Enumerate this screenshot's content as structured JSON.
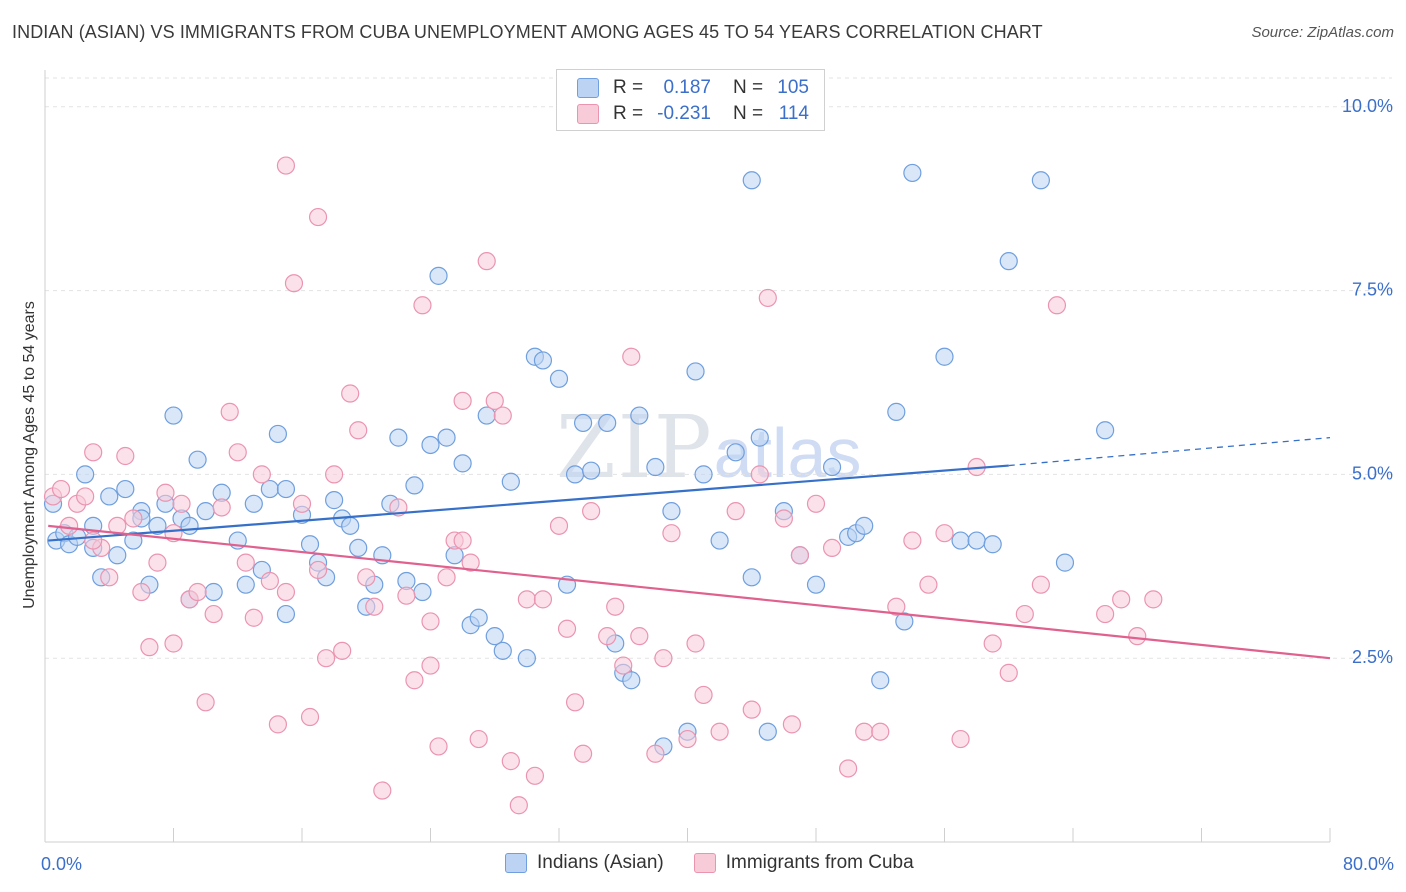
{
  "title": "INDIAN (ASIAN) VS IMMIGRANTS FROM CUBA UNEMPLOYMENT AMONG AGES 45 TO 54 YEARS CORRELATION CHART",
  "source": "Source: ZipAtlas.com",
  "watermark": {
    "zip": "ZIP",
    "atlas": "atlas"
  },
  "legend": {
    "r_label": "R =",
    "n_label": "N =",
    "rows": [
      {
        "r": "0.187",
        "n": "105",
        "color": "#9ec1ee"
      },
      {
        "r": "-0.231",
        "n": "114",
        "color": "#f4b3c8"
      }
    ]
  },
  "chart_data": {
    "type": "scatter",
    "ylabel": "Unemployment Among Ages 45 to 54 years",
    "xlim": [
      0,
      80
    ],
    "ylim": [
      0,
      10.5
    ],
    "x_tick_labels": [
      "0.0%",
      "80.0%"
    ],
    "y_ticks": [
      2.5,
      5.0,
      7.5,
      10.0
    ],
    "y_tick_labels": [
      "2.5%",
      "5.0%",
      "7.5%",
      "10.0%"
    ],
    "grid": true,
    "series": [
      {
        "name": "Indians (Asian)",
        "color": "#6f9fde",
        "fill": "#bcd3f3",
        "trend": {
          "x0": 0.2,
          "y0": 4.1,
          "x1": 60,
          "y1": 5.12,
          "x_dash_end": 80,
          "y_dash_end": 5.5,
          "color": "#3670c8"
        },
        "points": [
          [
            0.5,
            4.6
          ],
          [
            0.7,
            4.1
          ],
          [
            1.2,
            4.2
          ],
          [
            1.5,
            4.05
          ],
          [
            2,
            4.15
          ],
          [
            2.5,
            5.0
          ],
          [
            3,
            4.3
          ],
          [
            3.5,
            3.6
          ],
          [
            4,
            4.7
          ],
          [
            4.5,
            3.9
          ],
          [
            5,
            4.8
          ],
          [
            5.5,
            4.1
          ],
          [
            6,
            4.5
          ],
          [
            6.5,
            3.5
          ],
          [
            7,
            4.3
          ],
          [
            7.5,
            4.6
          ],
          [
            8,
            5.8
          ],
          [
            8.5,
            4.4
          ],
          [
            9,
            4.3
          ],
          [
            9.5,
            5.2
          ],
          [
            10,
            4.5
          ],
          [
            10.5,
            3.4
          ],
          [
            11,
            4.75
          ],
          [
            12,
            4.1
          ],
          [
            12.5,
            3.5
          ],
          [
            13,
            4.6
          ],
          [
            13.5,
            3.7
          ],
          [
            14,
            4.8
          ],
          [
            14.5,
            5.55
          ],
          [
            15,
            4.8
          ],
          [
            16,
            4.45
          ],
          [
            16.5,
            4.05
          ],
          [
            17,
            3.8
          ],
          [
            17.5,
            3.6
          ],
          [
            18,
            4.65
          ],
          [
            18.5,
            4.4
          ],
          [
            19,
            4.3
          ],
          [
            19.5,
            4.0
          ],
          [
            20,
            3.2
          ],
          [
            20.5,
            3.5
          ],
          [
            21,
            3.9
          ],
          [
            21.5,
            4.6
          ],
          [
            22,
            5.5
          ],
          [
            22.5,
            3.55
          ],
          [
            23,
            4.85
          ],
          [
            23.5,
            3.4
          ],
          [
            24,
            5.4
          ],
          [
            24.5,
            7.7
          ],
          [
            25,
            5.5
          ],
          [
            25.5,
            3.9
          ],
          [
            26,
            5.15
          ],
          [
            26.5,
            2.95
          ],
          [
            27,
            3.05
          ],
          [
            27.5,
            5.8
          ],
          [
            28,
            2.8
          ],
          [
            28.5,
            2.6
          ],
          [
            29,
            4.9
          ],
          [
            30,
            2.5
          ],
          [
            30.5,
            6.6
          ],
          [
            31,
            6.55
          ],
          [
            32,
            6.3
          ],
          [
            32.5,
            3.5
          ],
          [
            33,
            5.0
          ],
          [
            33.5,
            5.7
          ],
          [
            34,
            5.05
          ],
          [
            35,
            5.7
          ],
          [
            35.5,
            2.7
          ],
          [
            36,
            2.3
          ],
          [
            36.5,
            2.2
          ],
          [
            37,
            5.8
          ],
          [
            38,
            5.1
          ],
          [
            38.5,
            1.3
          ],
          [
            39,
            4.5
          ],
          [
            40,
            1.5
          ],
          [
            40.5,
            6.4
          ],
          [
            41,
            5.0
          ],
          [
            42,
            4.1
          ],
          [
            43,
            5.3
          ],
          [
            44,
            3.6
          ],
          [
            44.5,
            5.5
          ],
          [
            45,
            1.5
          ],
          [
            46,
            4.5
          ],
          [
            47,
            3.9
          ],
          [
            48,
            3.5
          ],
          [
            49,
            5.1
          ],
          [
            50,
            4.15
          ],
          [
            50.5,
            4.2
          ],
          [
            51,
            4.3
          ],
          [
            52,
            2.2
          ],
          [
            53,
            5.85
          ],
          [
            53.5,
            3.0
          ],
          [
            44,
            9.0
          ],
          [
            54,
            9.1
          ],
          [
            56,
            6.6
          ],
          [
            57,
            4.1
          ],
          [
            58,
            4.1
          ],
          [
            59,
            4.05
          ],
          [
            60,
            7.9
          ],
          [
            62,
            9.0
          ],
          [
            63.5,
            3.8
          ],
          [
            66,
            5.6
          ],
          [
            3,
            4.0
          ],
          [
            6,
            4.4
          ],
          [
            9,
            3.3
          ],
          [
            15,
            3.1
          ]
        ]
      },
      {
        "name": "Immigrants from Cuba",
        "color": "#eb94b0",
        "fill": "#f8cbd9",
        "trend": {
          "x0": 0.2,
          "y0": 4.3,
          "x1": 80,
          "y1": 2.5,
          "color": "#e0608e"
        },
        "points": [
          [
            0.5,
            4.7
          ],
          [
            1,
            4.8
          ],
          [
            1.5,
            4.3
          ],
          [
            2,
            4.6
          ],
          [
            2.5,
            4.7
          ],
          [
            3,
            5.3
          ],
          [
            3.5,
            4.0
          ],
          [
            4,
            3.6
          ],
          [
            4.5,
            4.3
          ],
          [
            5,
            5.25
          ],
          [
            5.5,
            4.4
          ],
          [
            6,
            3.4
          ],
          [
            6.5,
            2.65
          ],
          [
            7,
            3.8
          ],
          [
            7.5,
            4.75
          ],
          [
            8,
            4.2
          ],
          [
            8.5,
            4.6
          ],
          [
            9,
            3.3
          ],
          [
            9.5,
            3.4
          ],
          [
            10,
            1.9
          ],
          [
            10.5,
            3.1
          ],
          [
            11,
            4.55
          ],
          [
            11.5,
            5.85
          ],
          [
            12,
            5.3
          ],
          [
            12.5,
            3.8
          ],
          [
            13,
            3.05
          ],
          [
            13.5,
            5.0
          ],
          [
            14,
            3.55
          ],
          [
            14.5,
            1.6
          ],
          [
            15,
            3.4
          ],
          [
            15.5,
            7.6
          ],
          [
            16,
            4.6
          ],
          [
            16.5,
            1.7
          ],
          [
            17,
            3.7
          ],
          [
            17.5,
            2.5
          ],
          [
            18,
            5.0
          ],
          [
            18.5,
            2.6
          ],
          [
            19,
            6.1
          ],
          [
            19.5,
            5.6
          ],
          [
            20,
            3.6
          ],
          [
            20.5,
            3.2
          ],
          [
            21,
            0.7
          ],
          [
            22,
            4.55
          ],
          [
            22.5,
            3.35
          ],
          [
            23,
            2.2
          ],
          [
            23.5,
            7.3
          ],
          [
            24,
            2.4
          ],
          [
            24.5,
            1.3
          ],
          [
            25,
            3.6
          ],
          [
            25.5,
            4.1
          ],
          [
            26,
            6.0
          ],
          [
            26.5,
            3.8
          ],
          [
            27,
            1.4
          ],
          [
            27.5,
            7.9
          ],
          [
            28,
            6.0
          ],
          [
            28.5,
            5.8
          ],
          [
            29,
            1.1
          ],
          [
            29.5,
            0.5
          ],
          [
            30,
            3.3
          ],
          [
            30.5,
            0.9
          ],
          [
            31,
            3.3
          ],
          [
            32,
            4.3
          ],
          [
            32.5,
            2.9
          ],
          [
            33,
            1.9
          ],
          [
            33.5,
            1.2
          ],
          [
            34,
            4.5
          ],
          [
            35,
            2.8
          ],
          [
            35.5,
            3.2
          ],
          [
            36,
            2.4
          ],
          [
            36.5,
            6.6
          ],
          [
            37,
            2.8
          ],
          [
            38,
            1.2
          ],
          [
            38.5,
            2.5
          ],
          [
            39,
            4.2
          ],
          [
            40,
            1.4
          ],
          [
            40.5,
            2.7
          ],
          [
            41,
            2.0
          ],
          [
            42,
            1.5
          ],
          [
            43,
            4.5
          ],
          [
            44,
            1.8
          ],
          [
            44.5,
            5.0
          ],
          [
            45,
            7.4
          ],
          [
            46,
            4.4
          ],
          [
            46.5,
            1.6
          ],
          [
            47,
            3.9
          ],
          [
            48,
            4.6
          ],
          [
            49,
            4.0
          ],
          [
            50,
            1.0
          ],
          [
            51,
            1.5
          ],
          [
            52,
            1.5
          ],
          [
            53,
            3.2
          ],
          [
            54,
            4.1
          ],
          [
            55,
            3.5
          ],
          [
            56,
            4.2
          ],
          [
            57,
            1.4
          ],
          [
            58,
            5.1
          ],
          [
            59,
            2.7
          ],
          [
            60,
            2.3
          ],
          [
            61,
            3.1
          ],
          [
            62,
            3.5
          ],
          [
            63,
            7.3
          ],
          [
            66,
            3.1
          ],
          [
            67,
            3.3
          ],
          [
            68,
            2.8
          ],
          [
            69,
            3.3
          ],
          [
            15,
            9.2
          ],
          [
            17,
            8.5
          ],
          [
            24,
            3.0
          ],
          [
            26,
            4.1
          ],
          [
            8,
            2.7
          ],
          [
            3,
            4.1
          ]
        ]
      }
    ]
  }
}
